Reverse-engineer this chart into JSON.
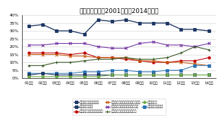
{
  "title": "就職観の推移（2001年卒～2014年卒）",
  "x_labels": [
    "01年卒",
    "02年卒",
    "03年卒",
    "04年卒",
    "05年卒",
    "06年卒",
    "07年卒",
    "08年卒",
    "09年卒",
    "10年卒",
    "11年卒",
    "12年卒",
    "13年卒",
    "14年卒"
  ],
  "ylim": [
    0,
    40
  ],
  "yticks": [
    0,
    5,
    10,
    15,
    20,
    25,
    30,
    35,
    40
  ],
  "series": [
    {
      "label": "楽しく働きたい",
      "color": "#1f3864",
      "marker": "s",
      "markersize": 2.5,
      "linewidth": 1.0,
      "values": [
        33,
        34,
        30,
        30,
        28,
        37,
        36,
        37,
        35,
        35,
        35,
        31,
        31,
        30
      ]
    },
    {
      "label": "プライドの持てる仕事をしたい",
      "color": "#7030a0",
      "marker": "x",
      "markersize": 3.0,
      "linewidth": 0.8,
      "values": [
        21,
        21,
        22,
        22,
        22,
        20,
        19,
        19,
        22,
        23,
        21,
        21,
        20,
        22
      ]
    },
    {
      "label": "自分の夢のために働きたい",
      "color": "#c00000",
      "marker": "o",
      "markersize": 2.5,
      "linewidth": 0.8,
      "values": [
        16,
        16,
        16,
        15,
        16,
        13,
        13,
        12,
        11,
        10,
        10,
        11,
        11,
        13
      ]
    },
    {
      "label": "個人の生活と仕事を両立させたい",
      "color": "#c55a11",
      "marker": "x",
      "markersize": 3.0,
      "linewidth": 0.8,
      "values": [
        15,
        15,
        15,
        14,
        14,
        13,
        13,
        13,
        11,
        11,
        10,
        10,
        9,
        8
      ]
    },
    {
      "label": "人のためになる仕事をしたい",
      "color": "#375623",
      "marker": "+",
      "markersize": 3.5,
      "linewidth": 0.8,
      "values": [
        8,
        8,
        10,
        10,
        11,
        12,
        12,
        13,
        12,
        12,
        13,
        16,
        20,
        18
      ]
    },
    {
      "label": "社会に貢献したい",
      "color": "#2e75b6",
      "marker": "s",
      "markersize": 2.5,
      "linewidth": 0.8,
      "values": [
        3,
        3,
        3,
        3,
        4,
        4,
        5,
        5,
        4,
        4,
        5,
        5,
        8,
        8
      ]
    },
    {
      "label": "個人さえよければよい",
      "color": "#203864",
      "marker": "s",
      "markersize": 2.5,
      "linewidth": 0.8,
      "values": [
        2,
        3,
        2,
        2,
        2,
        2,
        2,
        2,
        2,
        2,
        2,
        2,
        2,
        2
      ]
    },
    {
      "label": "出世したい",
      "color": "#70ad47",
      "marker": "o",
      "markersize": 2.5,
      "linewidth": 0.8,
      "values": [
        1,
        1,
        1,
        1,
        1,
        1,
        2,
        2,
        2,
        2,
        2,
        2,
        2,
        2
      ]
    }
  ],
  "legend_order": [
    "個人さえよければよい",
    "楽しく働きたい",
    "自分の夢のために働きたい",
    "個人の生活と仕事を両立させたい",
    "プライドの持てる仕事をしたい",
    "人のためになる仕事をしたい",
    "出世したい",
    "社会に貢献したい"
  ],
  "bg_color": "#ffffff",
  "grid_color": "#cccccc"
}
